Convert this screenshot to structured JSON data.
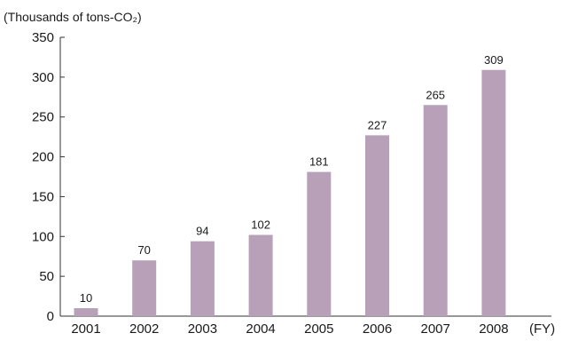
{
  "chart_data": {
    "type": "bar",
    "title": "",
    "ylabel": "(Thousands of tons-CO₂)",
    "xlabel": "(FY)",
    "categories": [
      "2001",
      "2002",
      "2003",
      "2004",
      "2005",
      "2006",
      "2007",
      "2008"
    ],
    "values": [
      10,
      70,
      94,
      102,
      181,
      227,
      265,
      309
    ],
    "data_labels": [
      "10",
      "70",
      "94",
      "102",
      "181",
      "227",
      "265",
      "309"
    ],
    "ylim": [
      0,
      350
    ],
    "yticks": [
      0,
      50,
      100,
      150,
      200,
      250,
      300,
      350
    ],
    "ytick_labels": [
      "0",
      "50",
      "100",
      "150",
      "200",
      "250",
      "300",
      "350"
    ],
    "grid": false,
    "legend": "none",
    "bar_color": "#b8a1b8",
    "axis_color": "#333333"
  }
}
